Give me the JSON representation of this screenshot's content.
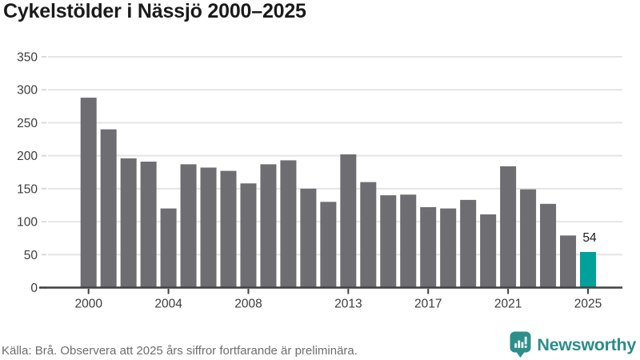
{
  "title": "Cykelstölder i Nässjö 2000–2025",
  "footer": {
    "source_note": "Källa: Brå. Observera att 2025 års siffror fortfarande är preliminära."
  },
  "branding": {
    "name": "Newsworthy",
    "icon": "newsworthy-bar-chart-bubble-icon",
    "color": "#2d8c8c",
    "icon_color": "#2e8f8a"
  },
  "colors": {
    "bar": "#6d6d72",
    "highlight": "#00a19a",
    "gridline": "#e5e5e5",
    "axis": "#404045",
    "tick_light": "#d9d9d9",
    "axis_label": "#3d3d3d",
    "value_label": "#1a1a1a"
  },
  "chart_data": {
    "type": "bar",
    "title": "Cykelstölder i Nässjö 2000–2025",
    "xlabel": "",
    "ylabel": "",
    "categories": [
      2000,
      2001,
      2002,
      2003,
      2004,
      2005,
      2006,
      2007,
      2008,
      2009,
      2010,
      2011,
      2012,
      2013,
      2014,
      2015,
      2016,
      2017,
      2018,
      2019,
      2020,
      2021,
      2022,
      2023,
      2024,
      2025
    ],
    "values": [
      288,
      240,
      196,
      191,
      120,
      187,
      182,
      177,
      158,
      187,
      193,
      150,
      130,
      202,
      160,
      140,
      141,
      122,
      120,
      133,
      111,
      184,
      149,
      127,
      79,
      54
    ],
    "highlight_category": 2025,
    "highlight_index": 25,
    "highlight_label": "54",
    "ylim": [
      0,
      350
    ],
    "yticks": [
      0,
      50,
      100,
      150,
      200,
      250,
      300,
      350
    ],
    "xticks": [
      2000,
      2004,
      2008,
      2013,
      2017,
      2021,
      2025
    ],
    "grid": true,
    "legend": "none"
  }
}
